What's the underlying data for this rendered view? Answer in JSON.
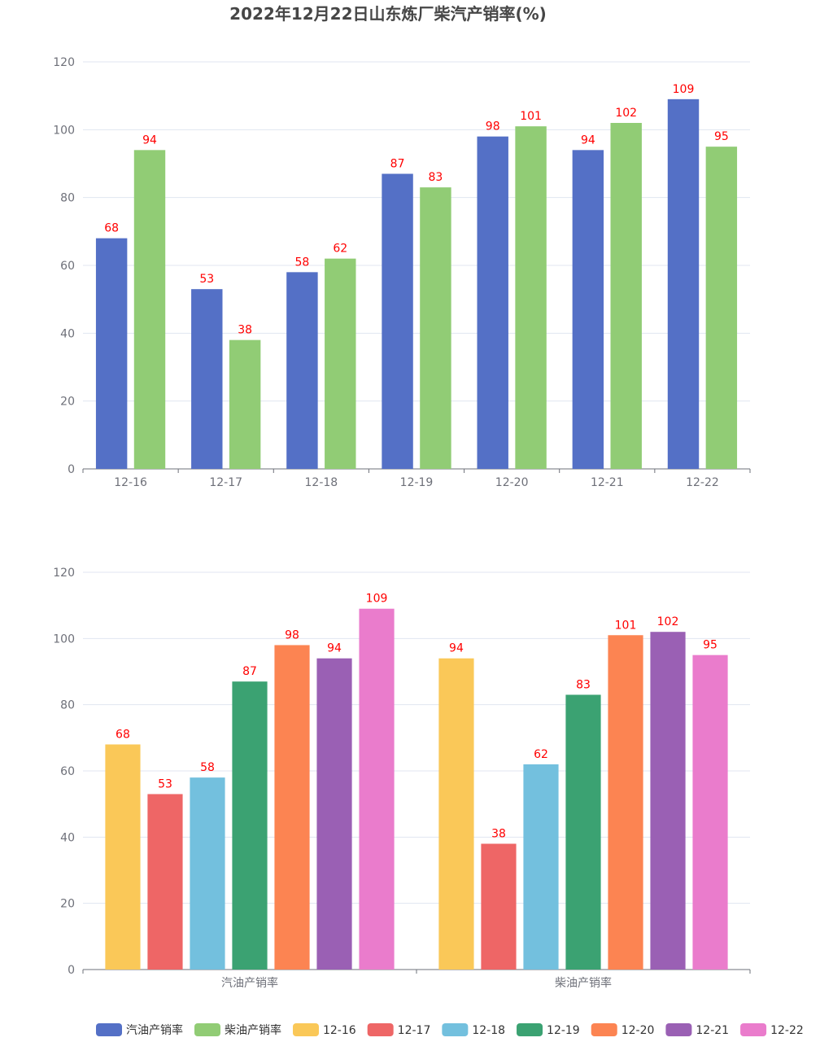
{
  "chart_data": [
    {
      "type": "bar",
      "title": "2022年12月22日山东炼厂柴汽产销率(%)",
      "categories": [
        "12-16",
        "12-17",
        "12-18",
        "12-19",
        "12-20",
        "12-21",
        "12-22"
      ],
      "series": [
        {
          "name": "汽油产销率",
          "color": "#5470c6",
          "values": [
            68,
            53,
            58,
            87,
            98,
            94,
            109
          ]
        },
        {
          "name": "柴油产销率",
          "color": "#91cc75",
          "values": [
            94,
            38,
            62,
            83,
            101,
            102,
            95
          ]
        }
      ],
      "ylim": [
        0,
        120
      ],
      "yticks": [
        0,
        20,
        40,
        60,
        80,
        100,
        120
      ],
      "grid": true,
      "data_labels": true,
      "label_color": "#ff0000"
    },
    {
      "type": "bar",
      "categories": [
        "汽油产销率",
        "柴油产销率"
      ],
      "series": [
        {
          "name": "12-16",
          "color": "#fac858",
          "values": [
            68,
            94
          ]
        },
        {
          "name": "12-17",
          "color": "#ee6666",
          "values": [
            53,
            38
          ]
        },
        {
          "name": "12-18",
          "color": "#73c0de",
          "values": [
            58,
            62
          ]
        },
        {
          "name": "12-19",
          "color": "#3ba272",
          "values": [
            87,
            83
          ]
        },
        {
          "name": "12-20",
          "color": "#fc8452",
          "values": [
            98,
            101
          ]
        },
        {
          "name": "12-21",
          "color": "#9a60b4",
          "values": [
            94,
            102
          ]
        },
        {
          "name": "12-22",
          "color": "#ea7ccc",
          "values": [
            109,
            95
          ]
        }
      ],
      "ylim": [
        0,
        120
      ],
      "yticks": [
        0,
        20,
        40,
        60,
        80,
        100,
        120
      ],
      "grid": true,
      "data_labels": true,
      "label_color": "#ff0000"
    }
  ],
  "legend": {
    "placement": "bottom",
    "items": [
      {
        "label": "汽油产销率",
        "color": "#5470c6"
      },
      {
        "label": "柴油产销率",
        "color": "#91cc75"
      },
      {
        "label": "12-16",
        "color": "#fac858"
      },
      {
        "label": "12-17",
        "color": "#ee6666"
      },
      {
        "label": "12-18",
        "color": "#73c0de"
      },
      {
        "label": "12-19",
        "color": "#3ba272"
      },
      {
        "label": "12-20",
        "color": "#fc8452"
      },
      {
        "label": "12-21",
        "color": "#9a60b4"
      },
      {
        "label": "12-22",
        "color": "#ea7ccc"
      }
    ]
  }
}
